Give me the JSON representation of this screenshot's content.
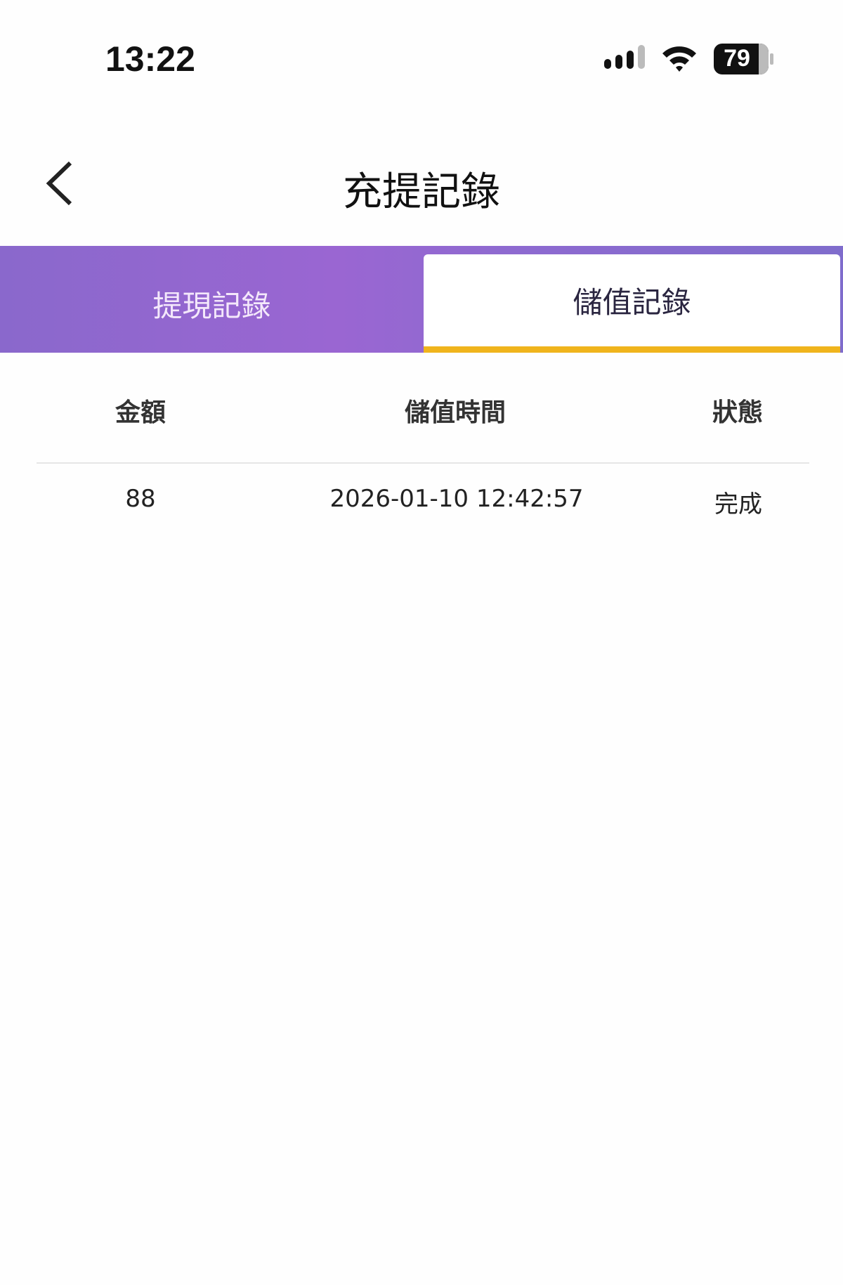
{
  "status_bar": {
    "time": "13:22",
    "battery": "79",
    "icons": [
      "signal-icon",
      "wifi-icon",
      "battery-icon"
    ]
  },
  "header": {
    "title": "充提記錄",
    "back_icon": "chevron-left-icon"
  },
  "tabs": [
    {
      "label": "提現記錄",
      "active": false
    },
    {
      "label": "儲值記錄",
      "active": true
    }
  ],
  "colors": {
    "tab_bar": "#8e68ce",
    "active_underline": "#f0b41c"
  },
  "table": {
    "columns": [
      "金額",
      "儲值時間",
      "狀態"
    ],
    "rows": [
      {
        "amount": "88",
        "time": "2026-01-10 12:42:57",
        "status": "完成"
      }
    ]
  }
}
